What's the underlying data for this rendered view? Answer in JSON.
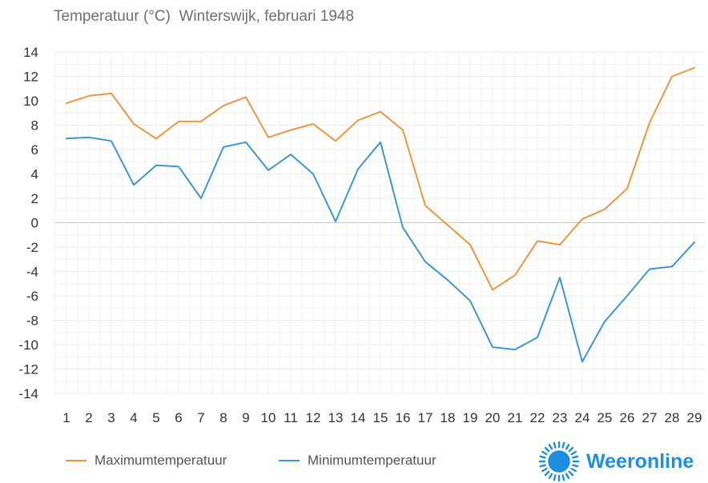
{
  "title": "Temperatuur (°C)  Winterswijk, februari 1948",
  "chart_data": {
    "type": "line",
    "x": [
      1,
      2,
      3,
      4,
      5,
      6,
      7,
      8,
      9,
      10,
      11,
      12,
      13,
      14,
      15,
      16,
      17,
      18,
      19,
      20,
      21,
      22,
      23,
      24,
      25,
      26,
      27,
      28,
      29
    ],
    "ylim": [
      -14,
      14
    ],
    "yticks": [
      14,
      12,
      10,
      8,
      6,
      4,
      2,
      0,
      -2,
      -4,
      -6,
      -8,
      -10,
      -12,
      -14
    ],
    "grid": true,
    "legend_position": "bottom-left",
    "series": [
      {
        "name": "Maximumtemperatuur",
        "color": "#f0963c",
        "values": [
          9.8,
          10.4,
          10.6,
          8.1,
          6.9,
          8.3,
          8.3,
          9.6,
          10.3,
          7.0,
          7.6,
          8.1,
          6.7,
          8.4,
          9.1,
          7.6,
          1.4,
          -0.2,
          -1.8,
          -5.5,
          -4.3,
          -1.5,
          -1.8,
          0.3,
          1.1,
          2.8,
          8.2,
          12.0,
          12.7
        ]
      },
      {
        "name": "Minimumtemperatuur",
        "color": "#3b97dc",
        "values": [
          6.9,
          7.0,
          6.7,
          3.1,
          4.7,
          4.6,
          2.0,
          6.2,
          6.6,
          4.3,
          5.6,
          4.0,
          0.1,
          4.4,
          6.6,
          -0.4,
          -3.2,
          -4.7,
          -6.4,
          -10.2,
          -10.4,
          -9.4,
          -4.5,
          -11.4,
          -8.1,
          -6.0,
          -3.8,
          -3.6,
          -1.6
        ]
      }
    ]
  },
  "brand": {
    "name": "Weeronline",
    "icon": "sun-icon",
    "color": "#1e8fe0"
  }
}
